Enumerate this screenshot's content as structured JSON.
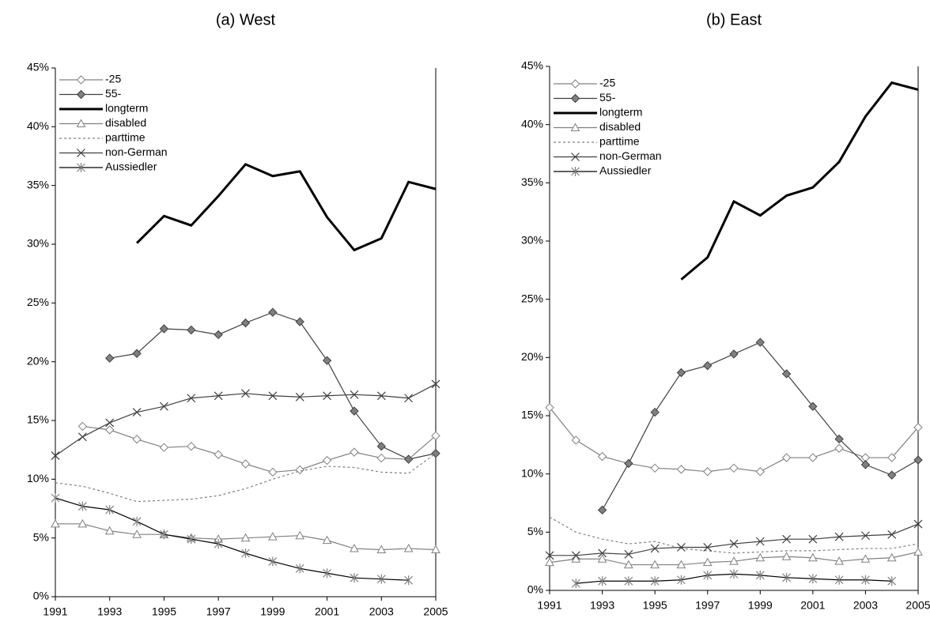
{
  "chart_data": [
    {
      "type": "line",
      "title": "(a)  West",
      "x": [
        1991,
        1992,
        1993,
        1994,
        1995,
        1996,
        1997,
        1998,
        1999,
        2000,
        2001,
        2002,
        2003,
        2004,
        2005
      ],
      "xlim": [
        1991,
        2005
      ],
      "xticks": [
        1991,
        1993,
        1995,
        1997,
        1999,
        2001,
        2003,
        2005
      ],
      "ylim": [
        0,
        45
      ],
      "yticks": [
        {
          "value": 0,
          "label": "0%"
        },
        {
          "value": 5,
          "label": "5%"
        },
        {
          "value": 10,
          "label": "10%"
        },
        {
          "value": 15,
          "label": "15%"
        },
        {
          "value": 20,
          "label": "20%"
        },
        {
          "value": 25,
          "label": "25%"
        },
        {
          "value": 30,
          "label": "30%"
        },
        {
          "value": 35,
          "label": "35%"
        },
        {
          "value": 40,
          "label": "40%"
        },
        {
          "value": 45,
          "label": "45%"
        }
      ],
      "legend": "top-left",
      "series": [
        {
          "name": "-25",
          "color": "#808080",
          "marker": "diamond",
          "marker_fill": "#ffffff",
          "values": [
            null,
            14.5,
            14.2,
            13.4,
            12.7,
            12.8,
            12.1,
            11.3,
            10.6,
            10.8,
            11.6,
            12.3,
            11.8,
            11.7,
            13.7
          ]
        },
        {
          "name": "55-",
          "color": "#404040",
          "marker": "diamond",
          "marker_fill": "#808080",
          "values": [
            null,
            null,
            20.3,
            20.7,
            22.8,
            22.7,
            22.3,
            23.3,
            24.2,
            23.4,
            20.1,
            15.8,
            12.8,
            11.7,
            12.2
          ]
        },
        {
          "name": "longterm",
          "color": "#000000",
          "width": 3,
          "values": [
            null,
            null,
            null,
            30.1,
            32.4,
            31.6,
            34.1,
            36.8,
            35.8,
            36.2,
            32.3,
            29.5,
            30.5,
            35.3,
            34.7
          ]
        },
        {
          "name": "disabled",
          "color": "#808080",
          "marker": "triangle",
          "marker_fill": "#ffffff",
          "values": [
            6.2,
            6.2,
            5.6,
            5.3,
            5.3,
            5.0,
            4.9,
            5.0,
            5.1,
            5.2,
            4.8,
            4.1,
            4.0,
            4.1,
            4.0
          ]
        },
        {
          "name": "parttime",
          "color": "#808080",
          "dash": true,
          "values": [
            9.7,
            9.4,
            8.8,
            8.1,
            8.2,
            8.3,
            8.6,
            9.2,
            10.0,
            10.7,
            11.1,
            11.0,
            10.6,
            10.5,
            12.2
          ]
        },
        {
          "name": "non-German",
          "color": "#404040",
          "marker": "x",
          "values": [
            12.0,
            13.6,
            14.8,
            15.7,
            16.2,
            16.9,
            17.1,
            17.3,
            17.1,
            17.0,
            17.1,
            17.2,
            17.1,
            16.9,
            18.1
          ]
        },
        {
          "name": "Aussiedler",
          "color": "#000000",
          "marker": "asterisk",
          "marker_color": "#808080",
          "values": [
            8.4,
            7.7,
            7.4,
            6.4,
            5.3,
            4.9,
            4.5,
            3.7,
            3.0,
            2.4,
            2.0,
            1.6,
            1.5,
            1.4,
            null
          ]
        }
      ]
    },
    {
      "type": "line",
      "title": "(b) East",
      "x": [
        1991,
        1992,
        1993,
        1994,
        1995,
        1996,
        1997,
        1998,
        1999,
        2000,
        2001,
        2002,
        2003,
        2004,
        2005
      ],
      "xlim": [
        1991,
        2005
      ],
      "xticks": [
        1991,
        1993,
        1995,
        1997,
        1999,
        2001,
        2003,
        2005
      ],
      "ylim": [
        0,
        45
      ],
      "yticks": [
        {
          "value": 0,
          "label": "0%"
        },
        {
          "value": 5,
          "label": "5%"
        },
        {
          "value": 10,
          "label": "10%"
        },
        {
          "value": 15,
          "label": "15%"
        },
        {
          "value": 20,
          "label": "20%"
        },
        {
          "value": 25,
          "label": "25%"
        },
        {
          "value": 30,
          "label": "30%"
        },
        {
          "value": 35,
          "label": "35%"
        },
        {
          "value": 40,
          "label": "40%"
        },
        {
          "value": 45,
          "label": "45%"
        }
      ],
      "legend": "top-left",
      "series": [
        {
          "name": "-25",
          "color": "#808080",
          "marker": "diamond",
          "marker_fill": "#ffffff",
          "values": [
            15.7,
            12.9,
            11.5,
            10.9,
            10.5,
            10.4,
            10.2,
            10.5,
            10.2,
            11.4,
            11.4,
            12.2,
            11.4,
            11.4,
            14.0
          ]
        },
        {
          "name": "55-",
          "color": "#404040",
          "marker": "diamond",
          "marker_fill": "#808080",
          "values": [
            null,
            null,
            6.9,
            10.9,
            15.3,
            18.7,
            19.3,
            20.3,
            21.3,
            18.6,
            15.8,
            13.0,
            10.8,
            9.9,
            11.2
          ]
        },
        {
          "name": "longterm",
          "color": "#000000",
          "width": 3,
          "values": [
            null,
            null,
            null,
            null,
            null,
            26.7,
            28.6,
            33.4,
            32.2,
            33.9,
            34.6,
            36.8,
            40.7,
            43.6,
            43.0
          ]
        },
        {
          "name": "disabled",
          "color": "#808080",
          "marker": "triangle",
          "marker_fill": "#ffffff",
          "values": [
            2.4,
            2.7,
            2.7,
            2.2,
            2.2,
            2.2,
            2.4,
            2.5,
            2.8,
            2.9,
            2.8,
            2.5,
            2.7,
            2.8,
            3.3
          ]
        },
        {
          "name": "parttime",
          "color": "#808080",
          "dash": true,
          "values": [
            6.3,
            5.0,
            4.4,
            4.0,
            4.2,
            3.6,
            3.4,
            3.2,
            3.3,
            3.4,
            3.4,
            3.5,
            3.6,
            3.6,
            4.0
          ]
        },
        {
          "name": "non-German",
          "color": "#404040",
          "marker": "x",
          "values": [
            3.0,
            3.0,
            3.2,
            3.1,
            3.6,
            3.7,
            3.7,
            4.0,
            4.2,
            4.4,
            4.4,
            4.6,
            4.7,
            4.8,
            5.7
          ]
        },
        {
          "name": "Aussiedler",
          "color": "#000000",
          "marker": "asterisk",
          "marker_color": "#808080",
          "values": [
            null,
            0.6,
            0.8,
            0.8,
            0.8,
            0.9,
            1.3,
            1.4,
            1.3,
            1.1,
            1.0,
            0.9,
            0.9,
            0.8,
            null
          ]
        }
      ]
    }
  ]
}
